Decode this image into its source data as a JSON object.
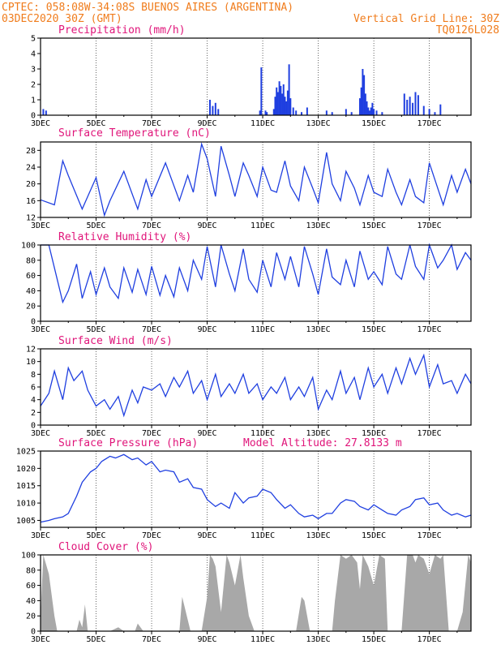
{
  "header": {
    "line1": "CPTEC:   058:08W-34:08S  BUENOS AIRES (ARGENTINA)",
    "line2_left": "03DEC2020 30Z (GMT)",
    "line2_right": "Vertical Grid Line: 30Z",
    "line3_right": "TQ0126L028"
  },
  "colors": {
    "header": "#f07c1c",
    "title": "#e0157a",
    "line": "#1f3fe0",
    "cloud": "#a8a8a8"
  },
  "x_labels": [
    "3DEC",
    "5DEC",
    "7DEC",
    "9DEC",
    "11DEC",
    "13DEC",
    "15DEC",
    "17DEC"
  ],
  "chart_data": [
    {
      "type": "bar",
      "title": "Precipitation (mm/h)",
      "ylim": [
        0,
        5
      ],
      "yticks": [
        "0",
        "1",
        "2",
        "3",
        "4",
        "5"
      ],
      "x": [
        0.1,
        0.2,
        6.1,
        6.2,
        6.3,
        6.4,
        7.9,
        7.95,
        8.1,
        8.15,
        8.4,
        8.45,
        8.5,
        8.55,
        8.6,
        8.65,
        8.7,
        8.75,
        8.8,
        8.85,
        8.9,
        8.95,
        9.0,
        9.1,
        9.2,
        9.4,
        9.6,
        10.3,
        10.5,
        11.0,
        11.2,
        11.5,
        11.55,
        11.6,
        11.65,
        11.7,
        11.75,
        11.8,
        11.85,
        11.9,
        11.95,
        12.0,
        12.1,
        12.3,
        13.1,
        13.2,
        13.3,
        13.4,
        13.5,
        13.6,
        13.8,
        14.0,
        14.2,
        14.4
      ],
      "values": [
        0.4,
        0.3,
        1.0,
        0.6,
        0.8,
        0.4,
        0.3,
        3.1,
        0.3,
        0.2,
        0.4,
        1.2,
        1.8,
        1.5,
        2.2,
        1.9,
        1.4,
        2.0,
        1.2,
        0.9,
        1.6,
        3.3,
        1.1,
        0.5,
        0.3,
        0.2,
        0.5,
        0.3,
        0.2,
        0.4,
        0.2,
        1.1,
        1.8,
        3.0,
        2.6,
        1.4,
        0.9,
        0.5,
        0.3,
        0.5,
        0.8,
        0.4,
        0.3,
        0.2,
        1.4,
        1.0,
        1.2,
        0.8,
        1.5,
        1.3,
        0.6,
        0.4,
        0.2,
        0.7
      ]
    },
    {
      "type": "line",
      "title": "Surface Temperature (nC)",
      "ylim": [
        12,
        30
      ],
      "yticks": [
        "12",
        "16",
        "20",
        "24",
        "28"
      ],
      "x": [
        0,
        0.5,
        0.8,
        1.0,
        1.5,
        2.0,
        2.3,
        2.5,
        3.0,
        3.5,
        3.8,
        4.0,
        4.5,
        5.0,
        5.3,
        5.5,
        5.8,
        6.0,
        6.3,
        6.5,
        6.8,
        7.0,
        7.3,
        7.5,
        7.8,
        8.0,
        8.3,
        8.5,
        8.8,
        9.0,
        9.3,
        9.5,
        9.8,
        10.0,
        10.3,
        10.5,
        10.8,
        11.0,
        11.3,
        11.5,
        11.8,
        12.0,
        12.3,
        12.5,
        12.8,
        13.0,
        13.3,
        13.5,
        13.8,
        14.0,
        14.3,
        14.5,
        14.8,
        15.0,
        15.3,
        15.5
      ],
      "values": [
        16.2,
        15.0,
        25.5,
        22.0,
        14.0,
        21.5,
        12.5,
        16.0,
        23.0,
        14.0,
        21.0,
        17.0,
        25.0,
        16.0,
        22.0,
        18.0,
        29.5,
        26.0,
        17.0,
        29.0,
        22.0,
        17.0,
        25.0,
        22.0,
        17.0,
        24.0,
        18.5,
        18.0,
        25.5,
        19.5,
        16.0,
        24.0,
        19.0,
        15.5,
        27.5,
        20.0,
        16.0,
        23.0,
        19.0,
        15.0,
        22.0,
        18.0,
        17.0,
        23.5,
        18.0,
        15.0,
        21.0,
        17.0,
        15.5,
        25.0,
        19.0,
        15.0,
        22.0,
        18.0,
        23.5,
        20.0
      ]
    },
    {
      "type": "line",
      "title": "Relative Humidity (%)",
      "ylim": [
        0,
        100
      ],
      "yticks": [
        "0",
        "20",
        "40",
        "60",
        "80",
        "100"
      ],
      "x": [
        0,
        0.3,
        0.5,
        0.8,
        1.0,
        1.3,
        1.5,
        1.8,
        2.0,
        2.3,
        2.5,
        2.8,
        3.0,
        3.3,
        3.5,
        3.8,
        4.0,
        4.3,
        4.5,
        4.8,
        5.0,
        5.3,
        5.5,
        5.8,
        6.0,
        6.3,
        6.5,
        6.8,
        7.0,
        7.3,
        7.5,
        7.8,
        8.0,
        8.3,
        8.5,
        8.8,
        9.0,
        9.3,
        9.5,
        9.8,
        10.0,
        10.3,
        10.5,
        10.8,
        11.0,
        11.3,
        11.5,
        11.8,
        12.0,
        12.3,
        12.5,
        12.8,
        13.0,
        13.3,
        13.5,
        13.8,
        14.0,
        14.3,
        14.5,
        14.8,
        15.0,
        15.3,
        15.5
      ],
      "values": [
        100,
        100,
        70,
        25,
        40,
        75,
        30,
        65,
        35,
        70,
        45,
        30,
        70,
        38,
        68,
        35,
        72,
        34,
        60,
        32,
        70,
        40,
        80,
        55,
        98,
        45,
        100,
        62,
        40,
        95,
        55,
        38,
        80,
        45,
        90,
        55,
        85,
        45,
        98,
        62,
        35,
        95,
        58,
        48,
        80,
        45,
        92,
        55,
        65,
        48,
        98,
        62,
        55,
        100,
        72,
        55,
        100,
        70,
        80,
        100,
        68,
        90,
        80
      ]
    },
    {
      "type": "line",
      "title": "Surface Wind (m/s)",
      "ylim": [
        0,
        12
      ],
      "yticks": [
        "0",
        "2",
        "4",
        "6",
        "8",
        "10",
        "12"
      ],
      "x": [
        0,
        0.3,
        0.5,
        0.8,
        1.0,
        1.2,
        1.5,
        1.7,
        2.0,
        2.3,
        2.5,
        2.8,
        3.0,
        3.3,
        3.5,
        3.7,
        4.0,
        4.3,
        4.5,
        4.8,
        5.0,
        5.3,
        5.5,
        5.8,
        6.0,
        6.3,
        6.5,
        6.8,
        7.0,
        7.3,
        7.5,
        7.8,
        8.0,
        8.3,
        8.5,
        8.8,
        9.0,
        9.3,
        9.5,
        9.8,
        10.0,
        10.3,
        10.5,
        10.8,
        11.0,
        11.3,
        11.5,
        11.8,
        12.0,
        12.3,
        12.5,
        12.8,
        13.0,
        13.3,
        13.5,
        13.8,
        14.0,
        14.3,
        14.5,
        14.8,
        15.0,
        15.3,
        15.5
      ],
      "values": [
        3.0,
        5.0,
        8.5,
        4.0,
        9.0,
        7.0,
        8.5,
        5.5,
        3.0,
        4.0,
        2.5,
        4.5,
        1.5,
        5.5,
        3.5,
        6.0,
        5.5,
        6.5,
        4.5,
        7.5,
        6.0,
        8.5,
        5.0,
        7.0,
        4.0,
        8.0,
        4.5,
        6.5,
        5.0,
        8.0,
        5.0,
        6.5,
        4.0,
        6.0,
        5.0,
        7.5,
        4.0,
        6.0,
        4.5,
        7.5,
        2.5,
        5.5,
        4.0,
        8.5,
        5.0,
        7.5,
        4.0,
        9.0,
        6.0,
        8.0,
        5.0,
        9.0,
        6.5,
        10.5,
        8.0,
        11.0,
        6.0,
        9.5,
        6.5,
        7.0,
        5.0,
        8.0,
        6.5
      ]
    },
    {
      "type": "line",
      "title": "Surface Pressure (hPa)",
      "annotation": "Model Altitude: 27.8133 m",
      "ylim": [
        1003,
        1025
      ],
      "yticks": [
        "1005",
        "1010",
        "1015",
        "1020",
        "1025"
      ],
      "x": [
        0,
        0.3,
        0.5,
        0.8,
        1.0,
        1.3,
        1.5,
        1.8,
        2.0,
        2.2,
        2.5,
        2.7,
        3.0,
        3.3,
        3.5,
        3.8,
        4.0,
        4.3,
        4.5,
        4.8,
        5.0,
        5.3,
        5.5,
        5.8,
        6.0,
        6.3,
        6.5,
        6.8,
        7.0,
        7.3,
        7.5,
        7.8,
        8.0,
        8.3,
        8.5,
        8.8,
        9.0,
        9.3,
        9.5,
        9.8,
        10.0,
        10.3,
        10.5,
        10.8,
        11.0,
        11.3,
        11.5,
        11.8,
        12.0,
        12.3,
        12.5,
        12.8,
        13.0,
        13.3,
        13.5,
        13.8,
        14.0,
        14.3,
        14.5,
        14.8,
        15.0,
        15.3,
        15.5
      ],
      "values": [
        1004.5,
        1005.0,
        1005.5,
        1006.0,
        1007.0,
        1012.0,
        1016.0,
        1019.0,
        1020.0,
        1022.0,
        1023.5,
        1023.0,
        1024.0,
        1022.5,
        1023.0,
        1021.0,
        1022.0,
        1019.0,
        1019.5,
        1019.0,
        1016.0,
        1017.0,
        1014.5,
        1014.0,
        1011.0,
        1009.0,
        1010.0,
        1008.5,
        1013.0,
        1010.0,
        1011.5,
        1012.0,
        1014.0,
        1013.0,
        1011.0,
        1008.5,
        1009.5,
        1007.0,
        1006.0,
        1006.5,
        1005.5,
        1007.0,
        1007.0,
        1010.0,
        1011.0,
        1010.5,
        1009.0,
        1008.0,
        1009.5,
        1008.0,
        1007.0,
        1006.5,
        1008.0,
        1009.0,
        1011.0,
        1011.5,
        1009.5,
        1010.0,
        1008.0,
        1006.5,
        1007.0,
        1006.0,
        1006.5
      ]
    },
    {
      "type": "area",
      "title": "Cloud Cover (%)",
      "ylim": [
        0,
        100
      ],
      "yticks": [
        "0",
        "20",
        "40",
        "60",
        "80",
        "100"
      ],
      "x": [
        0,
        0.1,
        0.3,
        0.5,
        0.6,
        0.7,
        0.8,
        1.0,
        1.3,
        1.4,
        1.5,
        1.6,
        1.7,
        1.8,
        2.0,
        2.3,
        2.5,
        2.8,
        3.0,
        3.2,
        3.4,
        3.5,
        3.7,
        4.0,
        4.2,
        4.5,
        4.7,
        5.0,
        5.1,
        5.3,
        5.4,
        5.5,
        5.7,
        5.8,
        6.0,
        6.1,
        6.2,
        6.3,
        6.5,
        6.7,
        6.8,
        7.0,
        7.2,
        7.3,
        7.5,
        7.7,
        7.8,
        8.0,
        8.2,
        8.4,
        8.5,
        8.7,
        8.8,
        9.0,
        9.2,
        9.4,
        9.5,
        9.7,
        9.8,
        10.0,
        10.2,
        10.4,
        10.5,
        10.6,
        10.8,
        11.0,
        11.2,
        11.4,
        11.5,
        11.6,
        11.8,
        12.0,
        12.2,
        12.4,
        12.5,
        12.6,
        12.8,
        13.0,
        13.2,
        13.4,
        13.5,
        13.6,
        13.8,
        14.0,
        14.2,
        14.4,
        14.5,
        14.7,
        14.8,
        15.0,
        15.2,
        15.4,
        15.5
      ],
      "values": [
        20,
        100,
        75,
        20,
        0,
        0,
        0,
        0,
        0,
        15,
        5,
        35,
        0,
        0,
        0,
        0,
        0,
        5,
        0,
        0,
        0,
        10,
        0,
        0,
        0,
        0,
        0,
        0,
        45,
        15,
        0,
        0,
        0,
        0,
        45,
        100,
        95,
        85,
        25,
        100,
        90,
        60,
        100,
        70,
        20,
        0,
        0,
        0,
        0,
        0,
        0,
        0,
        0,
        0,
        0,
        45,
        40,
        0,
        0,
        0,
        0,
        0,
        0,
        40,
        100,
        95,
        100,
        90,
        55,
        100,
        85,
        60,
        100,
        95,
        0,
        0,
        0,
        0,
        100,
        100,
        90,
        100,
        95,
        75,
        100,
        95,
        100,
        0,
        0,
        0,
        25,
        100,
        90
      ]
    }
  ]
}
